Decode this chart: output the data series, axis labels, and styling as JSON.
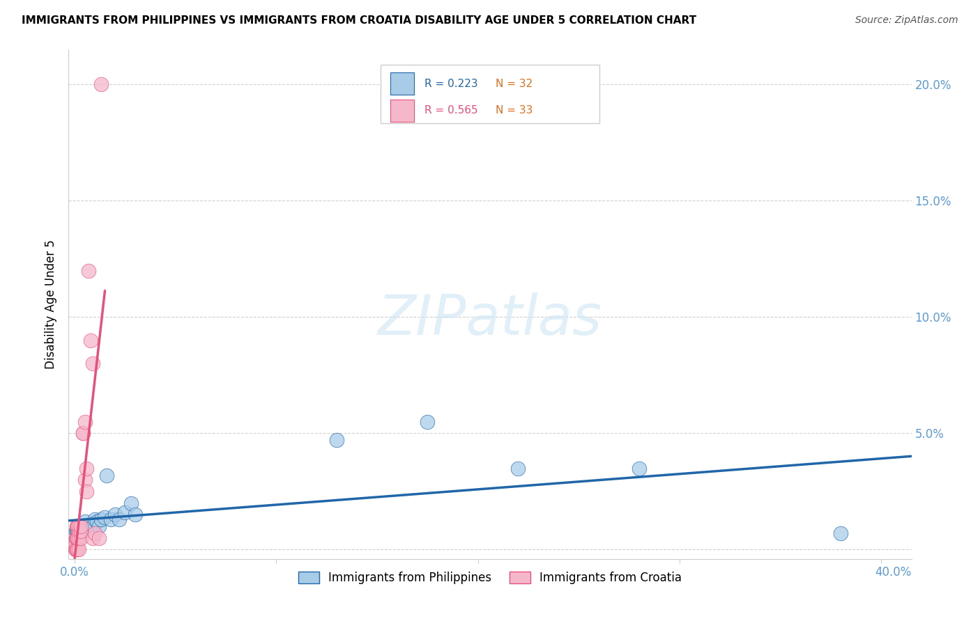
{
  "title": "IMMIGRANTS FROM PHILIPPINES VS IMMIGRANTS FROM CROATIA DISABILITY AGE UNDER 5 CORRELATION CHART",
  "source": "Source: ZipAtlas.com",
  "ylabel": "Disability Age Under 5",
  "yticks": [
    0.0,
    0.05,
    0.1,
    0.15,
    0.2
  ],
  "xticks": [
    0.0,
    0.1,
    0.2,
    0.3,
    0.4
  ],
  "xlim": [
    -0.003,
    0.415
  ],
  "ylim": [
    -0.004,
    0.215
  ],
  "watermark": "ZIPatlas",
  "legend1_label": "Immigrants from Philippines",
  "legend2_label": "Immigrants from Croatia",
  "r_blue": "R = 0.223",
  "n_blue": "N = 32",
  "r_pink": "R = 0.565",
  "n_pink": "N = 33",
  "blue_color": "#a8cce8",
  "blue_line_color": "#2066a8",
  "pink_color": "#f5b8cb",
  "pink_line_color": "#e8507a",
  "philippines_x": [
    0.0005,
    0.001,
    0.001,
    0.0015,
    0.002,
    0.002,
    0.003,
    0.003,
    0.004,
    0.005,
    0.005,
    0.006,
    0.007,
    0.008,
    0.009,
    0.01,
    0.011,
    0.012,
    0.013,
    0.015,
    0.016,
    0.018,
    0.02,
    0.022,
    0.025,
    0.028,
    0.03,
    0.13,
    0.175,
    0.22,
    0.28,
    0.38
  ],
  "philippines_y": [
    0.008,
    0.006,
    0.009,
    0.008,
    0.01,
    0.007,
    0.009,
    0.01,
    0.008,
    0.01,
    0.012,
    0.009,
    0.01,
    0.011,
    0.01,
    0.013,
    0.012,
    0.01,
    0.013,
    0.014,
    0.032,
    0.013,
    0.015,
    0.013,
    0.016,
    0.02,
    0.015,
    0.047,
    0.055,
    0.035,
    0.035,
    0.007
  ],
  "croatia_x": [
    0.0003,
    0.0005,
    0.0006,
    0.0007,
    0.0008,
    0.0009,
    0.001,
    0.001,
    0.0012,
    0.0013,
    0.0014,
    0.0015,
    0.0015,
    0.002,
    0.002,
    0.002,
    0.002,
    0.003,
    0.003,
    0.003,
    0.004,
    0.004,
    0.005,
    0.005,
    0.006,
    0.006,
    0.007,
    0.008,
    0.009,
    0.009,
    0.01,
    0.012,
    0.013
  ],
  "croatia_y": [
    0.0,
    0.005,
    0.0,
    0.003,
    0.005,
    0.01,
    0.0,
    0.005,
    0.0,
    0.005,
    0.01,
    0.005,
    0.01,
    0.0,
    0.005,
    0.008,
    0.01,
    0.005,
    0.008,
    0.01,
    0.05,
    0.05,
    0.055,
    0.03,
    0.025,
    0.035,
    0.12,
    0.09,
    0.08,
    0.005,
    0.007,
    0.005,
    0.2
  ],
  "blue_reg_slope": 0.008,
  "blue_reg_intercept": 0.009,
  "pink_reg_slope": 18.0,
  "pink_reg_intercept": -0.002
}
